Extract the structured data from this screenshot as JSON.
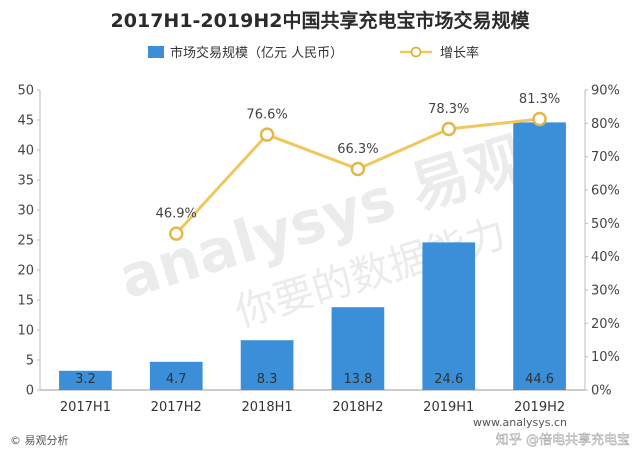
{
  "chart_data": {
    "type": "bar",
    "title": "2017H1-2019H2中国共享充电宝市场交易规模",
    "categories": [
      "2017H1",
      "2017H2",
      "2018H1",
      "2018H2",
      "2019H1",
      "2019H2"
    ],
    "series": [
      {
        "name": "市场交易规模（亿元 人民币）",
        "type": "bar",
        "axis": "left",
        "values": [
          3.2,
          4.7,
          8.3,
          13.8,
          24.6,
          44.6
        ],
        "labels": [
          "3.2",
          "4.7",
          "8.3",
          "13.8",
          "24.6",
          "44.6"
        ]
      },
      {
        "name": "增长率",
        "type": "line",
        "axis": "right",
        "values": [
          null,
          46.9,
          76.6,
          66.3,
          78.3,
          81.3
        ],
        "labels": [
          "",
          "46.9%",
          "76.6%",
          "66.3%",
          "78.3%",
          "81.3%"
        ]
      }
    ],
    "ylim": [
      0,
      50
    ],
    "yticks": [
      "0",
      "5",
      "10",
      "15",
      "20",
      "25",
      "30",
      "35",
      "40",
      "45",
      "50"
    ],
    "y2lim": [
      0,
      90
    ],
    "y2ticks": [
      "0%",
      "10%",
      "20%",
      "30%",
      "40%",
      "50%",
      "60%",
      "70%",
      "80%",
      "90%"
    ],
    "legend_position": "top",
    "grid": false,
    "colors": {
      "bar": "#3a8fd8",
      "line": "#f0c75e",
      "marker_fill": "#ffffff",
      "marker_stroke": "#e0b84a"
    }
  },
  "watermark": {
    "brand": "analysys 易观",
    "slogan": "你要的数据能力"
  },
  "footer": {
    "source": "© 易观分析",
    "site": "www.analysys.cn",
    "repost": "知乎 @倍电共享充电宝"
  }
}
